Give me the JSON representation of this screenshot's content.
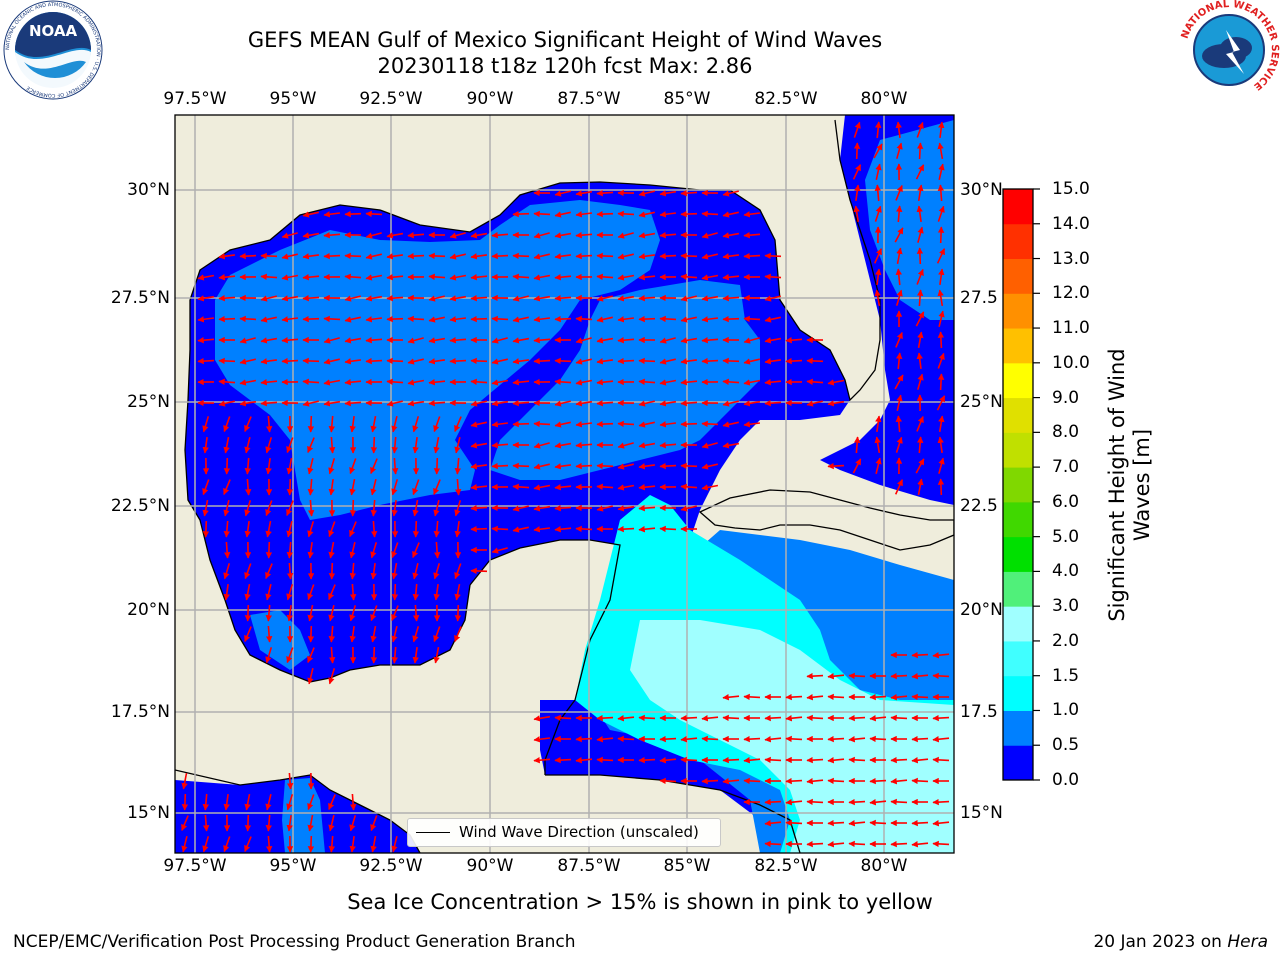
{
  "title": {
    "line1": "GEFS MEAN Gulf of Mexico Significant Height of Wind Waves",
    "line2": "20230118 t18z 120h fcst   Max: 2.86"
  },
  "logos": {
    "left": {
      "name": "noaa-logo",
      "text": "NOAA",
      "ring_text": "NATIONAL OCEANIC AND ATMOSPHERIC ADMINISTRATION · U.S. DEPARTMENT OF COMMERCE"
    },
    "right": {
      "name": "nws-logo",
      "ring_text": "NATIONAL WEATHER SERVICE"
    }
  },
  "map": {
    "lon_ticks": [
      "97.5°W",
      "95°W",
      "92.5°W",
      "90°W",
      "87.5°W",
      "85°W",
      "82.5°W",
      "80°W"
    ],
    "lat_ticks_left": [
      "30°N",
      "27.5°N",
      "25°N",
      "22.5°N",
      "20°N",
      "17.5°N",
      "15°N"
    ],
    "lat_ticks_right": [
      "30°N",
      "27.5",
      "25°N",
      "22.5",
      "20°N",
      "17.5",
      "15°N"
    ],
    "land_color": "#efeddc",
    "grid_color": "#b0b0b0",
    "arrow_color": "#ff0000",
    "legend_label": "Wind Wave Direction (unscaled)"
  },
  "colorbar": {
    "label_line1": "Significant Height of Wind",
    "label_line2": "Waves [m]",
    "tick_labels": [
      "15.0",
      "14.0",
      "13.0",
      "12.0",
      "11.0",
      "10.0",
      "9.0",
      "8.0",
      "7.0",
      "6.0",
      "5.0",
      "4.0",
      "3.0",
      "2.0",
      "1.5",
      "1.0",
      "0.5",
      "0.0"
    ],
    "colors_bottom_to_top": [
      "#0000ff",
      "#0080ff",
      "#00ffff",
      "#40ffff",
      "#a0ffff",
      "#50f07a",
      "#00e000",
      "#40d800",
      "#80d800",
      "#c0e000",
      "#e0e000",
      "#ffff00",
      "#ffc000",
      "#ff9000",
      "#ff6000",
      "#ff3000",
      "#ff0000"
    ]
  },
  "notes": {
    "ice": "Sea Ice Concentration > 15% is shown in pink to yellow",
    "footer_left": "NCEP/EMC/Verification Post Processing Product Generation Branch",
    "footer_date": "20 Jan 2023 on ",
    "footer_host": "Hera"
  }
}
